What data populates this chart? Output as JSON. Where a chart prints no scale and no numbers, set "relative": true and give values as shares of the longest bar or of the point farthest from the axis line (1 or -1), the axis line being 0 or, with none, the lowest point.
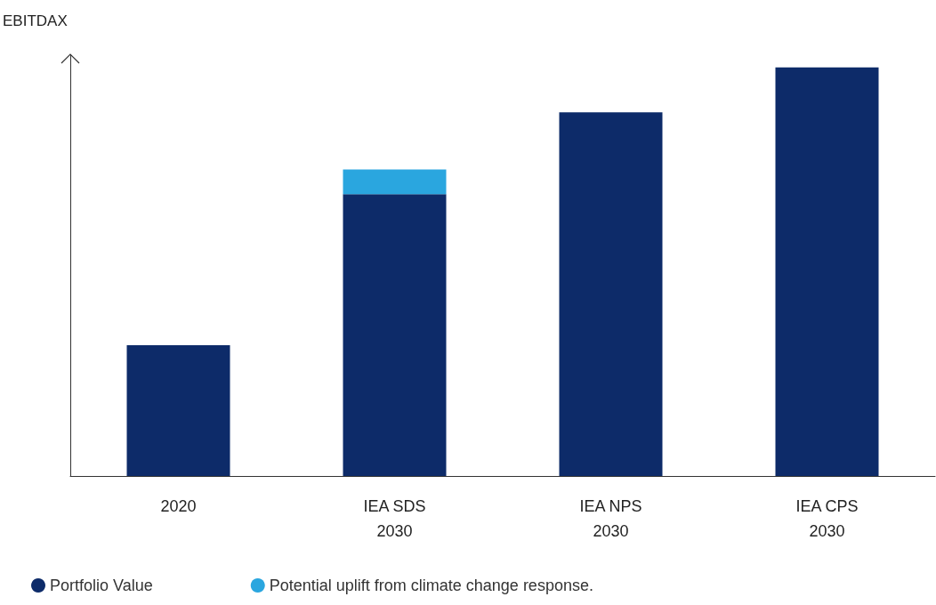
{
  "chart_data": {
    "type": "bar",
    "stacked": true,
    "relative": true,
    "ylabel": "EBITDAX",
    "categories": [
      "2020",
      "IEA SDS\n2030",
      "IEA NPS\n2030",
      "IEA CPS\n2030"
    ],
    "series": [
      {
        "name": "Portfolio Value",
        "color": "#0d2b69",
        "values": [
          0.32,
          0.69,
          0.89,
          1
        ]
      },
      {
        "name": "Potential uplift from climate change response.",
        "color": "#2aa6df",
        "values": [
          null,
          0.06,
          null,
          null
        ]
      }
    ],
    "legend": "bottom left",
    "grid": false
  }
}
